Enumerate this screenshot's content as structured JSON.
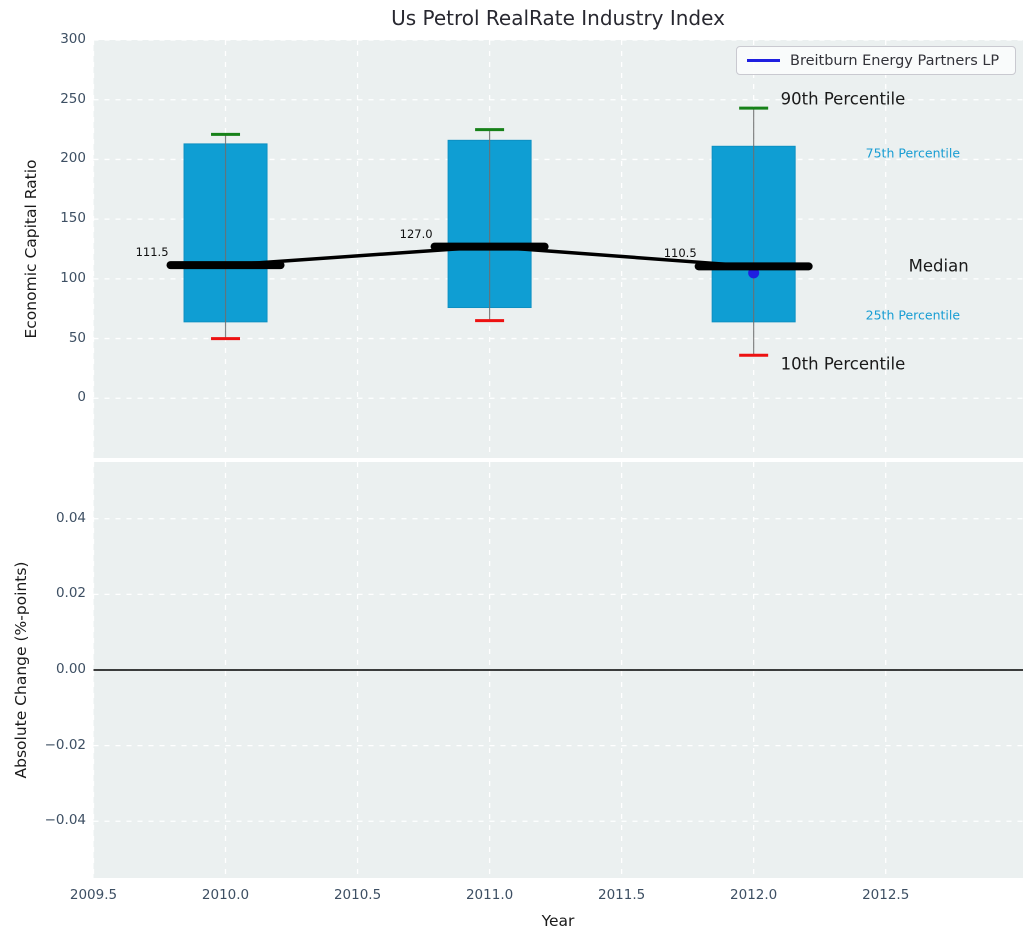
{
  "title": "Us Petrol RealRate Industry Index",
  "legend": {
    "label": "Breitburn Energy Partners LP"
  },
  "colors": {
    "axes_bg": "#ebf0f0",
    "grid": "#ffffff",
    "box_fill": "#0f9ed3",
    "box_edge": "#0d90c2",
    "whisker_line": "#6f6f6f",
    "cap_high": "#168118",
    "cap_low": "#ed1111",
    "median_line": "#000000",
    "company_blue": "#1f1fe0",
    "zero_line": "#000000",
    "annotation_cyan": "#189dd3",
    "annotation_black": "#1a1a1a",
    "tick_text": "#3d4f63"
  },
  "chart_data": [
    {
      "type": "boxplot",
      "title": "Us Petrol RealRate Industry Index",
      "ylabel": "Economic Capital Ratio",
      "ylim": [
        -50,
        300
      ],
      "yticks": [
        {
          "v": 300,
          "label": "300"
        },
        {
          "v": 250,
          "label": "250"
        },
        {
          "v": 200,
          "label": "200"
        },
        {
          "v": 150,
          "label": "150"
        },
        {
          "v": 100,
          "label": "100"
        },
        {
          "v": 50,
          "label": "50"
        },
        {
          "v": 0,
          "label": "0"
        }
      ],
      "xlim": [
        2009.5,
        2013.0
      ],
      "grid": true,
      "legend_position": "upper right",
      "boxes": [
        {
          "year": 2010,
          "p10": 50,
          "p25": 64,
          "median": 111.5,
          "p75": 213,
          "p90": 221,
          "median_label": "111.5"
        },
        {
          "year": 2011,
          "p10": 65,
          "p25": 76,
          "median": 127.0,
          "p75": 216,
          "p90": 225,
          "median_label": "127.0"
        },
        {
          "year": 2012,
          "p10": 36,
          "p25": 64,
          "median": 110.5,
          "p75": 211,
          "p90": 243,
          "median_label": "110.5"
        }
      ],
      "company_point": {
        "name": "Breitburn Energy Partners LP",
        "x": 2012,
        "y": 105
      },
      "annotations": [
        {
          "id": "p90",
          "label": "90th Percentile",
          "color": "#1a1a1a"
        },
        {
          "id": "p75",
          "label": "75th Percentile",
          "color": "#189dd3"
        },
        {
          "id": "median",
          "label": "Median",
          "color": "#1a1a1a"
        },
        {
          "id": "p25",
          "label": "25th Percentile",
          "color": "#189dd3"
        },
        {
          "id": "p10",
          "label": "10th Percentile",
          "color": "#1a1a1a"
        }
      ]
    },
    {
      "type": "line",
      "ylabel": "Absolute Change (%-points)",
      "xlabel": "Year",
      "ylim": [
        -0.055,
        0.055
      ],
      "yticks": [
        {
          "v": 0.04,
          "label": "0.04"
        },
        {
          "v": 0.02,
          "label": "0.02"
        },
        {
          "v": 0.0,
          "label": "0.00"
        },
        {
          "v": -0.02,
          "label": "−0.02"
        },
        {
          "v": -0.04,
          "label": "−0.04"
        }
      ],
      "xticks": [
        {
          "v": 2009.5,
          "label": "2009.5"
        },
        {
          "v": 2010.0,
          "label": "2010.0"
        },
        {
          "v": 2010.5,
          "label": "2010.5"
        },
        {
          "v": 2011.0,
          "label": "2011.0"
        },
        {
          "v": 2011.5,
          "label": "2011.5"
        },
        {
          "v": 2012.0,
          "label": "2012.0"
        },
        {
          "v": 2012.5,
          "label": "2012.5"
        }
      ],
      "zero_line": 0.0,
      "series": []
    }
  ]
}
